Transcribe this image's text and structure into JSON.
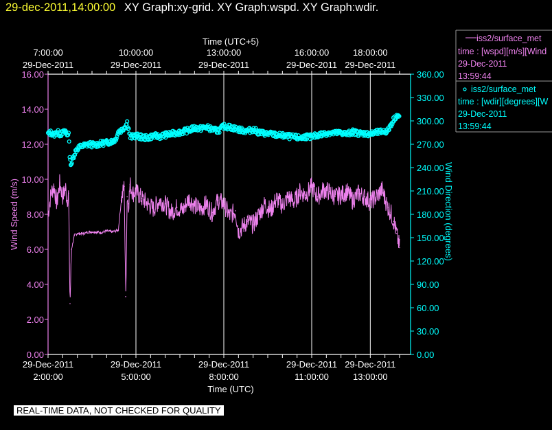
{
  "header": {
    "timestamp": "29-dec-2011,14:00:00",
    "graph_titles": "XY Graph:xy-grid.  XY Graph:wspd.  XY Graph:wdir."
  },
  "colors": {
    "wspd": "#ee82ee",
    "wdir": "#00ffff",
    "grid": "#ffffff",
    "header_ts": "#ffff33"
  },
  "notice": "REAL-TIME DATA, NOT CHECKED FOR QUALITY",
  "chart_data": {
    "type": "line",
    "top_axis": {
      "label": "Time (UTC+5)",
      "ticks": [
        {
          "x": 2.0,
          "time": "7:00:00",
          "date": "29-Dec-2011"
        },
        {
          "x": 5.0,
          "time": "10:00:00",
          "date": "29-Dec-2011"
        },
        {
          "x": 8.0,
          "time": "13:00:00",
          "date": "29-Dec-2011"
        },
        {
          "x": 11.0,
          "time": "16:00:00",
          "date": "29-Dec-2011"
        },
        {
          "x": 13.0,
          "time": "18:00:00",
          "date": "29-Dec-2011"
        }
      ]
    },
    "bottom_axis": {
      "label": "Time (UTC)",
      "range_hours_utc": [
        2.0,
        14.0
      ],
      "ticks": [
        {
          "x": 2.0,
          "date": "29-Dec-2011",
          "time": "2:00:00"
        },
        {
          "x": 5.0,
          "date": "29-Dec-2011",
          "time": "5:00:00"
        },
        {
          "x": 8.0,
          "date": "29-Dec-2011",
          "time": "8:00:00"
        },
        {
          "x": 11.0,
          "date": "29-Dec-2011",
          "time": "11:00:00"
        },
        {
          "x": 13.0,
          "date": "29-Dec-2011",
          "time": "13:00:00"
        }
      ]
    },
    "left_axis": {
      "label": "Wind Speed (m/s)",
      "ylim": [
        0,
        16
      ],
      "ticks": [
        "0.00",
        "2.00",
        "4.00",
        "6.00",
        "8.00",
        "10.00",
        "12.00",
        "14.00",
        "16.00"
      ]
    },
    "right_axis": {
      "label": "Wind Direction (degrees)",
      "ylim": [
        0,
        360
      ],
      "ticks": [
        "0.00",
        "30.00",
        "60.00",
        "90.00",
        "120.00",
        "150.00",
        "180.00",
        "210.00",
        "240.00",
        "270.00",
        "300.00",
        "330.00",
        "360.00"
      ]
    },
    "grid": "vertical lines at major time ticks",
    "legend": {
      "placement": "right",
      "items": [
        {
          "marker": "line",
          "name": "iss2/surface_met",
          "var": "time : [wspd][m/s][Wind",
          "date": "29-Dec-2011",
          "time": "13:59:44"
        },
        {
          "marker": "circle",
          "name": "iss2/surface_met",
          "var": "time : [wdir][degrees][W",
          "date": "29-Dec-2011",
          "time": "13:59:44"
        }
      ]
    },
    "series": [
      {
        "key": "wspd",
        "axis": "left",
        "style": "line",
        "x": [
          2.0,
          2.1,
          2.2,
          2.3,
          2.4,
          2.5,
          2.6,
          2.65,
          2.7,
          2.75,
          2.8,
          2.9,
          3.0,
          3.2,
          3.4,
          3.6,
          3.8,
          4.0,
          4.2,
          4.4,
          4.5,
          4.6,
          4.65,
          4.7,
          4.75,
          4.8,
          4.9,
          5.0,
          5.2,
          5.4,
          5.6,
          5.8,
          6.0,
          6.2,
          6.4,
          6.6,
          6.8,
          7.0,
          7.2,
          7.4,
          7.6,
          7.8,
          8.0,
          8.2,
          8.4,
          8.5,
          8.6,
          8.8,
          9.0,
          9.2,
          9.4,
          9.6,
          9.8,
          10.0,
          10.2,
          10.4,
          10.6,
          10.8,
          11.0,
          11.2,
          11.4,
          11.6,
          11.8,
          12.0,
          12.2,
          12.4,
          12.6,
          12.8,
          13.0,
          13.2,
          13.4,
          13.6,
          13.7,
          13.8,
          13.9,
          14.0
        ],
        "values": [
          8.0,
          9.2,
          9.6,
          8.6,
          9.8,
          9.0,
          9.5,
          8.8,
          9.2,
          2.9,
          6.0,
          6.8,
          6.9,
          6.9,
          7.0,
          7.0,
          6.95,
          7.05,
          7.0,
          7.1,
          8.8,
          9.6,
          3.3,
          9.0,
          8.6,
          9.7,
          9.2,
          9.3,
          8.9,
          8.6,
          8.3,
          8.8,
          8.6,
          8.1,
          8.4,
          8.2,
          8.9,
          8.5,
          8.3,
          8.6,
          8.1,
          8.8,
          8.6,
          7.9,
          8.2,
          7.0,
          7.2,
          7.6,
          7.4,
          8.0,
          8.6,
          8.2,
          8.9,
          8.5,
          9.0,
          8.7,
          9.3,
          9.1,
          9.6,
          9.0,
          9.4,
          9.3,
          9.0,
          9.1,
          9.3,
          8.8,
          9.2,
          9.0,
          8.7,
          9.0,
          9.4,
          8.4,
          8.1,
          7.6,
          6.9,
          6.1
        ]
      },
      {
        "key": "wdir",
        "axis": "right",
        "style": "circles",
        "x": [
          2.0,
          2.1,
          2.2,
          2.3,
          2.4,
          2.5,
          2.6,
          2.65,
          2.7,
          2.75,
          2.8,
          2.9,
          3.0,
          3.2,
          3.4,
          3.6,
          3.8,
          4.0,
          4.2,
          4.3,
          4.4,
          4.5,
          4.6,
          4.65,
          4.7,
          4.75,
          4.8,
          4.9,
          5.0,
          5.2,
          5.4,
          5.6,
          5.8,
          6.0,
          6.2,
          6.4,
          6.6,
          6.8,
          7.0,
          7.2,
          7.4,
          7.6,
          7.8,
          8.0,
          8.2,
          8.4,
          8.6,
          8.8,
          9.0,
          9.2,
          9.4,
          9.6,
          9.8,
          10.0,
          10.2,
          10.4,
          10.6,
          10.8,
          11.0,
          11.2,
          11.4,
          11.6,
          11.8,
          12.0,
          12.2,
          12.4,
          12.6,
          12.8,
          13.0,
          13.2,
          13.4,
          13.6,
          13.7,
          13.8,
          13.9,
          14.0
        ],
        "values": [
          283,
          285,
          282,
          286,
          283,
          284,
          287,
          282,
          285,
          248,
          245,
          258,
          265,
          268,
          270,
          269,
          271,
          272,
          274,
          276,
          286,
          288,
          292,
          294,
          298,
          290,
          279,
          280,
          281,
          279,
          278,
          281,
          280,
          282,
          283,
          285,
          286,
          288,
          291,
          290,
          292,
          289,
          287,
          293,
          292,
          290,
          288,
          287,
          289,
          285,
          284,
          283,
          282,
          281,
          280,
          279,
          278,
          280,
          279,
          282,
          283,
          285,
          284,
          285,
          283,
          286,
          284,
          284,
          283,
          285,
          286,
          287,
          295,
          302,
          307,
          305
        ]
      }
    ]
  }
}
